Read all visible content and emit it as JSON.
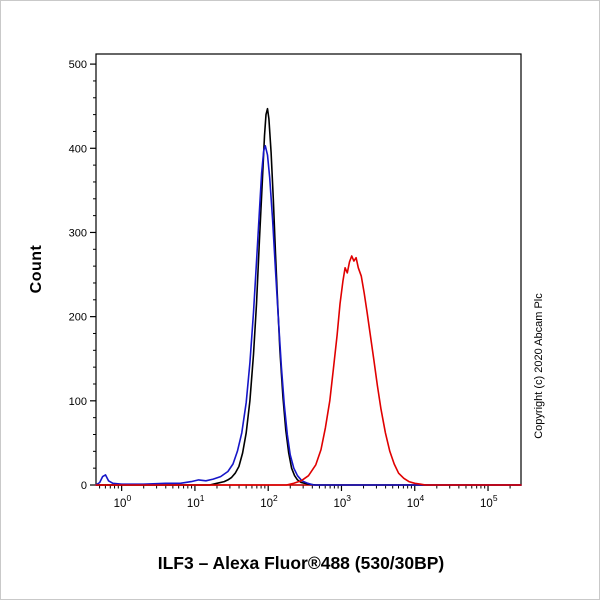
{
  "labels": {
    "copyright": "Copyright (c) 2020 Abcam Plc"
  },
  "chart_data": {
    "type": "line",
    "title": "ILF3 – Alexa Fluor®488 (530/30BP)",
    "xlabel": "",
    "ylabel": "Count",
    "x_scale": "log10",
    "xlim_log": [
      -0.35,
      5.45
    ],
    "ylim": [
      0,
      512
    ],
    "yticks": [
      0,
      100,
      200,
      300,
      400,
      500
    ],
    "y_minor_step": 20,
    "xtick_exponents": [
      0,
      1,
      2,
      3,
      4,
      5
    ],
    "axis_color": "#000000",
    "x_axis_line_color": "#cc0000",
    "legend": "none",
    "grid": false,
    "series": [
      {
        "name": "black",
        "color": "#000000",
        "peak_count": 447,
        "peak_x_log": 1.99,
        "points": [
          [
            -0.35,
            0
          ],
          [
            1.2,
            0
          ],
          [
            1.3,
            2
          ],
          [
            1.4,
            4
          ],
          [
            1.45,
            6
          ],
          [
            1.5,
            9
          ],
          [
            1.55,
            14
          ],
          [
            1.6,
            22
          ],
          [
            1.65,
            38
          ],
          [
            1.7,
            62
          ],
          [
            1.75,
            100
          ],
          [
            1.8,
            155
          ],
          [
            1.84,
            215
          ],
          [
            1.88,
            290
          ],
          [
            1.92,
            360
          ],
          [
            1.95,
            415
          ],
          [
            1.97,
            440
          ],
          [
            1.99,
            447
          ],
          [
            2.01,
            435
          ],
          [
            2.04,
            395
          ],
          [
            2.07,
            340
          ],
          [
            2.1,
            275
          ],
          [
            2.13,
            215
          ],
          [
            2.16,
            160
          ],
          [
            2.2,
            105
          ],
          [
            2.24,
            65
          ],
          [
            2.28,
            38
          ],
          [
            2.32,
            20
          ],
          [
            2.36,
            11
          ],
          [
            2.4,
            6
          ],
          [
            2.45,
            3
          ],
          [
            2.55,
            1
          ],
          [
            2.65,
            0
          ],
          [
            5.45,
            0
          ]
        ]
      },
      {
        "name": "blue",
        "color": "#1616c8",
        "peak_count": 403,
        "peak_x_log": 1.96,
        "points": [
          [
            -0.35,
            0
          ],
          [
            -0.3,
            3
          ],
          [
            -0.26,
            10
          ],
          [
            -0.22,
            12
          ],
          [
            -0.18,
            5
          ],
          [
            -0.12,
            2
          ],
          [
            0.0,
            1
          ],
          [
            0.3,
            1
          ],
          [
            0.6,
            2
          ],
          [
            0.8,
            2
          ],
          [
            0.95,
            4
          ],
          [
            1.05,
            6
          ],
          [
            1.15,
            5
          ],
          [
            1.25,
            7
          ],
          [
            1.35,
            10
          ],
          [
            1.45,
            16
          ],
          [
            1.52,
            25
          ],
          [
            1.58,
            40
          ],
          [
            1.64,
            62
          ],
          [
            1.7,
            98
          ],
          [
            1.75,
            145
          ],
          [
            1.8,
            205
          ],
          [
            1.84,
            265
          ],
          [
            1.88,
            325
          ],
          [
            1.91,
            370
          ],
          [
            1.94,
            398
          ],
          [
            1.96,
            403
          ],
          [
            1.99,
            392
          ],
          [
            2.02,
            365
          ],
          [
            2.06,
            315
          ],
          [
            2.1,
            255
          ],
          [
            2.14,
            195
          ],
          [
            2.18,
            140
          ],
          [
            2.22,
            95
          ],
          [
            2.26,
            60
          ],
          [
            2.3,
            36
          ],
          [
            2.35,
            20
          ],
          [
            2.4,
            11
          ],
          [
            2.46,
            5
          ],
          [
            2.54,
            2
          ],
          [
            2.62,
            0
          ],
          [
            5.45,
            0
          ]
        ]
      },
      {
        "name": "red",
        "color": "#e00000",
        "peak_count": 272,
        "peak_x_log": 3.14,
        "points": [
          [
            -0.35,
            0
          ],
          [
            2.25,
            0
          ],
          [
            2.35,
            2
          ],
          [
            2.45,
            5
          ],
          [
            2.55,
            11
          ],
          [
            2.65,
            24
          ],
          [
            2.72,
            42
          ],
          [
            2.78,
            68
          ],
          [
            2.84,
            100
          ],
          [
            2.89,
            138
          ],
          [
            2.94,
            178
          ],
          [
            2.98,
            215
          ],
          [
            3.02,
            242
          ],
          [
            3.05,
            258
          ],
          [
            3.08,
            252
          ],
          [
            3.11,
            265
          ],
          [
            3.14,
            272
          ],
          [
            3.17,
            266
          ],
          [
            3.2,
            270
          ],
          [
            3.23,
            258
          ],
          [
            3.27,
            248
          ],
          [
            3.31,
            228
          ],
          [
            3.35,
            205
          ],
          [
            3.39,
            180
          ],
          [
            3.44,
            150
          ],
          [
            3.49,
            118
          ],
          [
            3.54,
            90
          ],
          [
            3.6,
            62
          ],
          [
            3.66,
            40
          ],
          [
            3.72,
            25
          ],
          [
            3.78,
            14
          ],
          [
            3.85,
            8
          ],
          [
            3.92,
            4
          ],
          [
            4.0,
            2
          ],
          [
            4.08,
            1
          ],
          [
            4.15,
            0
          ],
          [
            5.45,
            0
          ]
        ]
      }
    ]
  }
}
